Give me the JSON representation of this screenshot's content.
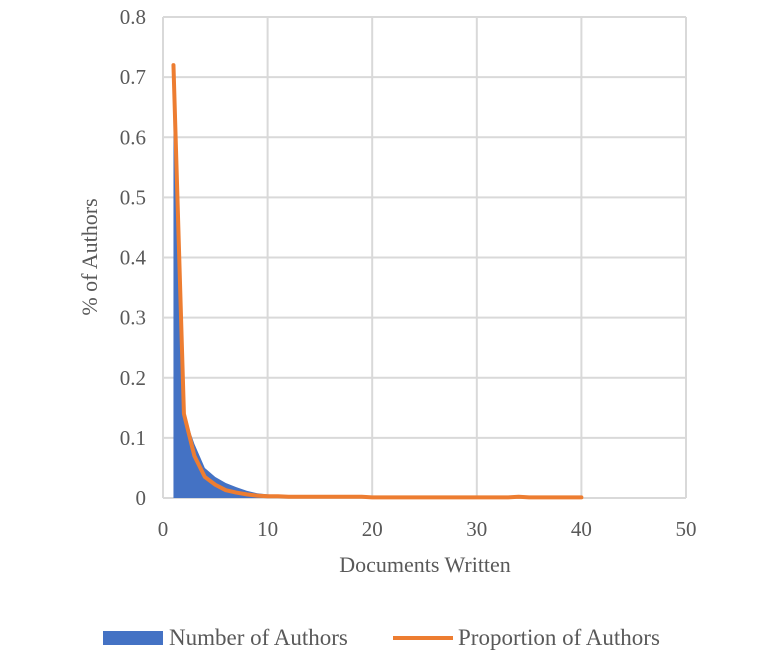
{
  "chart_data": {
    "type": "area",
    "title": "",
    "xlabel": "Documents Written",
    "ylabel": "% of Authors",
    "xlim": [
      0,
      50
    ],
    "ylim": [
      0,
      0.8
    ],
    "x_ticks": [
      0,
      10,
      20,
      30,
      40,
      50
    ],
    "y_ticks": [
      0,
      0.1,
      0.2,
      0.3,
      0.4,
      0.5,
      0.6,
      0.7,
      0.8
    ],
    "x_tick_labels": [
      "0",
      "10",
      "20",
      "30",
      "40",
      "50"
    ],
    "y_tick_labels": [
      "0",
      "0.1",
      "0.2",
      "0.3",
      "0.4",
      "0.5",
      "0.6",
      "0.7",
      "0.8"
    ],
    "grid": true,
    "legend_position": "bottom",
    "series": [
      {
        "name": "Number of Authors",
        "type": "area",
        "color": "#4472C4",
        "x": [
          1,
          2,
          3,
          4,
          5,
          6,
          7,
          8,
          9,
          10,
          11,
          12,
          13,
          14,
          15,
          16,
          17,
          18,
          19,
          20,
          21,
          22,
          23,
          24,
          25,
          26,
          27,
          28,
          29,
          30,
          31,
          32,
          33,
          34,
          35,
          36,
          37,
          38,
          39,
          40
        ],
        "values": [
          0.72,
          0.14,
          0.09,
          0.05,
          0.035,
          0.025,
          0.018,
          0.012,
          0.008,
          0.006,
          0.005,
          0.004,
          0.003,
          0.003,
          0.002,
          0.002,
          0.002,
          0.002,
          0.001,
          0.001,
          0.001,
          0.001,
          0.001,
          0.001,
          0.001,
          0.001,
          0.001,
          0.001,
          0.001,
          0.001,
          0.001,
          0.001,
          0.001,
          0.001,
          0.001,
          0.001,
          0.001,
          0.001,
          0.001,
          0.001
        ]
      },
      {
        "name": "Proportion of Authors",
        "type": "line",
        "color": "#ED7D31",
        "x": [
          1,
          2,
          3,
          4,
          5,
          6,
          7,
          8,
          9,
          10,
          11,
          12,
          13,
          14,
          15,
          16,
          17,
          18,
          19,
          20,
          21,
          22,
          23,
          24,
          25,
          26,
          27,
          28,
          29,
          30,
          31,
          32,
          33,
          34,
          35,
          36,
          37,
          38,
          39,
          40
        ],
        "values": [
          0.72,
          0.14,
          0.07,
          0.035,
          0.022,
          0.013,
          0.009,
          0.006,
          0.004,
          0.003,
          0.003,
          0.002,
          0.002,
          0.002,
          0.002,
          0.002,
          0.002,
          0.002,
          0.002,
          0.001,
          0.001,
          0.001,
          0.001,
          0.001,
          0.001,
          0.001,
          0.001,
          0.001,
          0.001,
          0.001,
          0.001,
          0.001,
          0.001,
          0.002,
          0.001,
          0.001,
          0.001,
          0.001,
          0.001,
          0.001
        ]
      }
    ]
  },
  "colors": {
    "grid": "#D9D9D9",
    "axis_text": "#595959"
  }
}
